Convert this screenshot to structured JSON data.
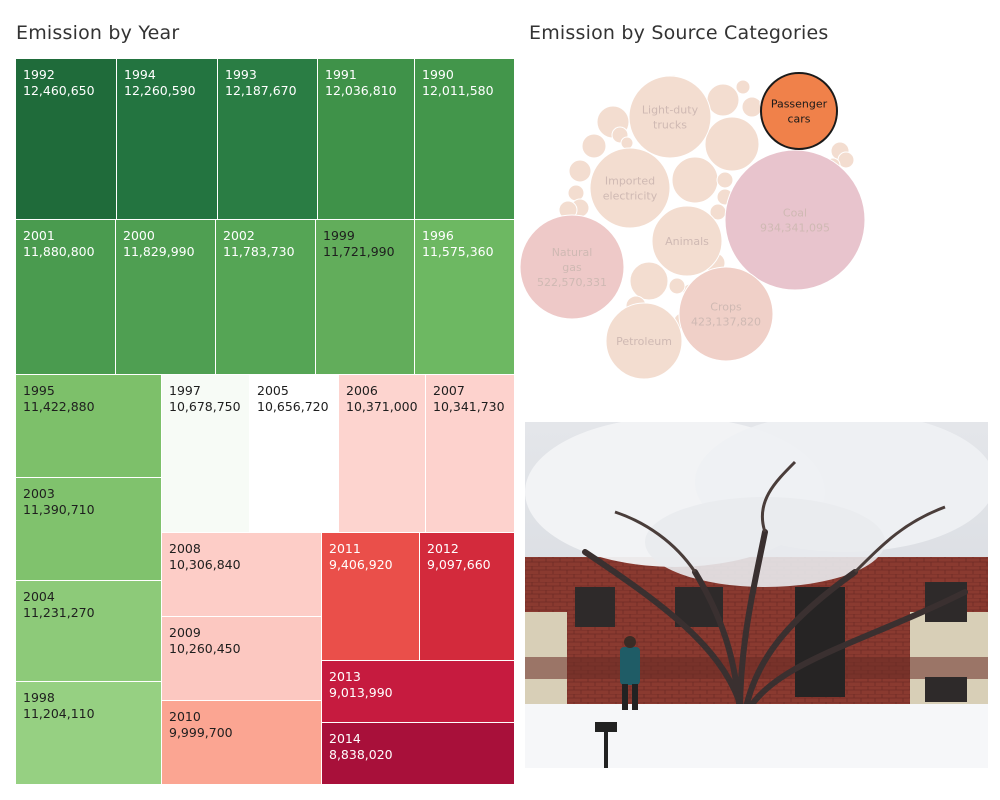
{
  "titles": {
    "year": "Emission by Year",
    "source": "Emission by Source Categories"
  },
  "chart_data": [
    {
      "type": "treemap",
      "title": "Emission by Year",
      "color_scale": "green (high) to red (low)",
      "items": [
        {
          "year": "1992",
          "value": 12460650,
          "label": "12,460,650",
          "color": "#1f6b3a",
          "text": "#ffffff"
        },
        {
          "year": "1994",
          "value": 12260590,
          "label": "12,260,590",
          "color": "#237440",
          "text": "#ffffff"
        },
        {
          "year": "1993",
          "value": 12187670,
          "label": "12,187,670",
          "color": "#2a7d44",
          "text": "#ffffff"
        },
        {
          "year": "1991",
          "value": 12036810,
          "label": "12,036,810",
          "color": "#3f9249",
          "text": "#ffffff"
        },
        {
          "year": "1990",
          "value": 12011580,
          "label": "12,011,580",
          "color": "#43964b",
          "text": "#ffffff"
        },
        {
          "year": "2001",
          "value": 11880800,
          "label": "11,880,800",
          "color": "#4a9b4f",
          "text": "#ffffff"
        },
        {
          "year": "2000",
          "value": 11829990,
          "label": "11,829,990",
          "color": "#4f9f52",
          "text": "#ffffff"
        },
        {
          "year": "2002",
          "value": 11783730,
          "label": "11,783,730",
          "color": "#55a555",
          "text": "#ffffff"
        },
        {
          "year": "1999",
          "value": 11721990,
          "label": "11,721,990",
          "color": "#62ad5b",
          "text": "#1e1e1e"
        },
        {
          "year": "1996",
          "value": 11575360,
          "label": "11,575,360",
          "color": "#6db862",
          "text": "#ffffff"
        },
        {
          "year": "1995",
          "value": 11422880,
          "label": "11,422,880",
          "color": "#7dc06a",
          "text": "#1e1e1e"
        },
        {
          "year": "2003",
          "value": 11390710,
          "label": "11,390,710",
          "color": "#80c26d",
          "text": "#1e1e1e"
        },
        {
          "year": "2004",
          "value": 11231270,
          "label": "11,231,270",
          "color": "#8dca79",
          "text": "#1e1e1e"
        },
        {
          "year": "1998",
          "value": 11204110,
          "label": "11,204,110",
          "color": "#96d082",
          "text": "#1e1e1e"
        },
        {
          "year": "1997",
          "value": 10678750,
          "label": "10,678,750",
          "color": "#f7fbf6",
          "text": "#1e1e1e"
        },
        {
          "year": "2005",
          "value": 10656720,
          "label": "10,656,720",
          "color": "#ffffff",
          "text": "#1e1e1e"
        },
        {
          "year": "2006",
          "value": 10371000,
          "label": "10,371,000",
          "color": "#fdd4cf",
          "text": "#1e1e1e"
        },
        {
          "year": "2007",
          "value": 10341730,
          "label": "10,341,730",
          "color": "#fdd2cd",
          "text": "#1e1e1e"
        },
        {
          "year": "2008",
          "value": 10306840,
          "label": "10,306,840",
          "color": "#fdcdc7",
          "text": "#1e1e1e"
        },
        {
          "year": "2009",
          "value": 10260450,
          "label": "10,260,450",
          "color": "#fcc8c1",
          "text": "#1e1e1e"
        },
        {
          "year": "2010",
          "value": 9999700,
          "label": "9,999,700",
          "color": "#fba592",
          "text": "#1e1e1e"
        },
        {
          "year": "2011",
          "value": 9406920,
          "label": "9,406,920",
          "color": "#ea4f4a",
          "text": "#ffffff"
        },
        {
          "year": "2012",
          "value": 9097660,
          "label": "9,097,660",
          "color": "#d32a3c",
          "text": "#ffffff"
        },
        {
          "year": "2013",
          "value": 9013990,
          "label": "9,013,990",
          "color": "#c61b3f",
          "text": "#ffffff"
        },
        {
          "year": "2014",
          "value": 8838020,
          "label": "8,838,020",
          "color": "#a8103a",
          "text": "#ffffff"
        }
      ]
    },
    {
      "type": "bubble",
      "title": "Emission by Source Categories",
      "highlighted": "Passenger cars",
      "bubbles": [
        {
          "name": "Coal",
          "value": 934341095,
          "value_label": "934,341,095",
          "color": "#e8c4cd"
        },
        {
          "name": "Natural gas",
          "value": 522570331,
          "value_label": "522,570,331",
          "color": "#eec9c8"
        },
        {
          "name": "Crops",
          "value": 423137820,
          "value_label": "423,137,820",
          "color": "#f0d0c8"
        },
        {
          "name": "Passenger cars",
          "value_label": "",
          "color": "#f0814a"
        },
        {
          "name": "Light-duty trucks",
          "value_label": "",
          "color": "#f3ddd0"
        },
        {
          "name": "Imported electricity",
          "value_label": "",
          "color": "#f3ddd0"
        },
        {
          "name": "Animals",
          "value_label": "",
          "color": "#f3ddd0"
        },
        {
          "name": "Petroleum",
          "value_label": "",
          "color": "#f3ddd0"
        }
      ]
    }
  ],
  "photo": {
    "subject": "snow-covered-tree-icon"
  }
}
